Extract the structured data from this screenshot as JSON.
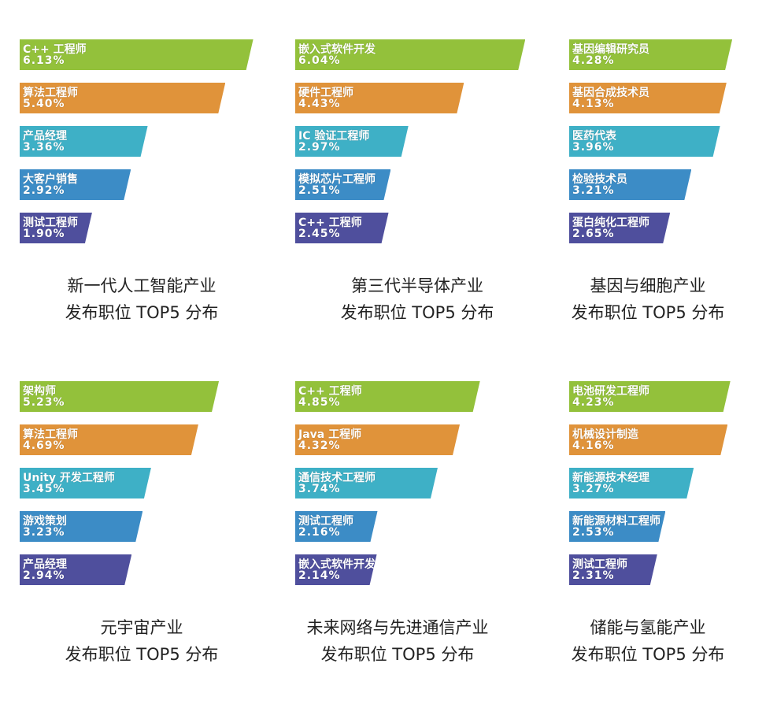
{
  "colors": [
    "#93c13b",
    "#e0933a",
    "#3eb0c6",
    "#3c8cc6",
    "#4f4f9d"
  ],
  "chart_data": [
    {
      "type": "bar",
      "title_line1": "新一代人工智能产业",
      "title_line2": "发布职位 TOP5 分布",
      "categories": [
        "C++ 工程师",
        "算法工程师",
        "产品经理",
        "大客户销售",
        "测试工程师"
      ],
      "values": [
        6.13,
        5.4,
        3.36,
        2.92,
        1.9
      ],
      "value_labels": [
        "6.13%",
        "5.40%",
        "3.36%",
        "2.92%",
        "1.90%"
      ]
    },
    {
      "type": "bar",
      "title_line1": "第三代半导体产业",
      "title_line2": "发布职位 TOP5 分布",
      "categories": [
        "嵌入式软件开发",
        "硬件工程师",
        "IC 验证工程师",
        "模拟芯片工程师",
        "C++ 工程师"
      ],
      "values": [
        6.04,
        4.43,
        2.97,
        2.51,
        2.45
      ],
      "value_labels": [
        "6.04%",
        "4.43%",
        "2.97%",
        "2.51%",
        "2.45%"
      ]
    },
    {
      "type": "bar",
      "title_line1": "基因与细胞产业",
      "title_line2": "发布职位 TOP5 分布",
      "categories": [
        "基因编辑研究员",
        "基因合成技术员",
        "医药代表",
        "检验技术员",
        "蛋白纯化工程师"
      ],
      "values": [
        4.28,
        4.13,
        3.96,
        3.21,
        2.65
      ],
      "value_labels": [
        "4.28%",
        "4.13%",
        "3.96%",
        "3.21%",
        "2.65%"
      ]
    },
    {
      "type": "bar",
      "title_line1": "元宇宙产业",
      "title_line2": "发布职位 TOP5 分布",
      "categories": [
        "架构师",
        "算法工程师",
        "Unity 开发工程师",
        "游戏策划",
        "产品经理"
      ],
      "values": [
        5.23,
        4.69,
        3.45,
        3.23,
        2.94
      ],
      "value_labels": [
        "5.23%",
        "4.69%",
        "3.45%",
        "3.23%",
        "2.94%"
      ]
    },
    {
      "type": "bar",
      "title_line1": "未来网络与先进通信产业",
      "title_line2": "发布职位 TOP5 分布",
      "categories": [
        "C++ 工程师",
        "Java 工程师",
        "通信技术工程师",
        "测试工程师",
        "嵌入式软件开发"
      ],
      "values": [
        4.85,
        4.32,
        3.74,
        2.16,
        2.14
      ],
      "value_labels": [
        "4.85%",
        "4.32%",
        "3.74%",
        "2.16%",
        "2.14%"
      ]
    },
    {
      "type": "bar",
      "title_line1": "储能与氢能产业",
      "title_line2": "发布职位 TOP5 分布",
      "categories": [
        "电池研发工程师",
        "机械设计制造",
        "新能源技术经理",
        "新能源材料工程师",
        "测试工程师"
      ],
      "values": [
        4.23,
        4.16,
        3.27,
        2.53,
        2.31
      ],
      "value_labels": [
        "4.23%",
        "4.16%",
        "3.27%",
        "2.53%",
        "2.31%"
      ]
    }
  ]
}
